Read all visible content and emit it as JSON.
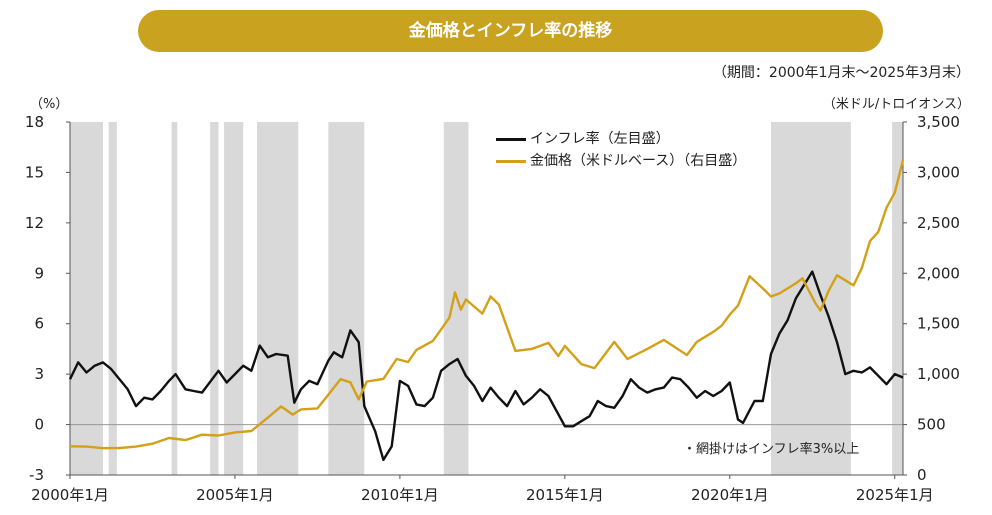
{
  "title": "金価格とインフレ率の推移",
  "period_note": "（期間：2000年1月末～2025年3月末）",
  "left_unit": "（%）",
  "right_unit": "（米ドル/トロイオンス）",
  "shading_note": "・網掛けはインフレ率3%以上",
  "colors": {
    "accent": "#c9a21f",
    "inflation": "#111111",
    "gold": "#d4a017",
    "shade": "#d9d9d9"
  },
  "chart_data": {
    "type": "line",
    "title": "金価格とインフレ率の推移",
    "x_tick_labels": [
      "2000年1月",
      "2005年1月",
      "2010年1月",
      "2015年1月",
      "2020年1月",
      "2025年1月"
    ],
    "x_tick_years": [
      2000,
      2005,
      2010,
      2015,
      2020,
      2025
    ],
    "x_range": [
      2000.0,
      2025.25
    ],
    "y_left": {
      "label": "（%）",
      "range": [
        -3,
        18
      ],
      "ticks": [
        -3,
        0,
        3,
        6,
        9,
        12,
        15,
        18
      ]
    },
    "y_right": {
      "label": "（米ドル/トロイオンス）",
      "range": [
        0,
        3500
      ],
      "ticks": [
        0,
        500,
        1000,
        1500,
        2000,
        2500,
        3000,
        3500
      ]
    },
    "grid": false,
    "legend_position": "top-center",
    "shaded_periods": [
      [
        2000.0,
        2001.0
      ],
      [
        2001.17,
        2001.42
      ],
      [
        2003.08,
        2003.25
      ],
      [
        2004.25,
        2004.5
      ],
      [
        2004.67,
        2005.25
      ],
      [
        2005.67,
        2006.92
      ],
      [
        2007.83,
        2008.92
      ],
      [
        2011.33,
        2012.08
      ],
      [
        2021.25,
        2023.67
      ],
      [
        2024.92,
        2025.25
      ]
    ],
    "series": [
      {
        "name": "インフレ率（左目盛）",
        "axis": "left",
        "color": "#111111",
        "points": [
          [
            2000.0,
            2.7
          ],
          [
            2000.25,
            3.7
          ],
          [
            2000.5,
            3.1
          ],
          [
            2000.75,
            3.5
          ],
          [
            2001.0,
            3.7
          ],
          [
            2001.25,
            3.3
          ],
          [
            2001.5,
            2.7
          ],
          [
            2001.75,
            2.1
          ],
          [
            2002.0,
            1.1
          ],
          [
            2002.25,
            1.6
          ],
          [
            2002.5,
            1.5
          ],
          [
            2002.75,
            2.0
          ],
          [
            2003.0,
            2.6
          ],
          [
            2003.2,
            3.0
          ],
          [
            2003.5,
            2.1
          ],
          [
            2003.75,
            2.0
          ],
          [
            2004.0,
            1.9
          ],
          [
            2004.5,
            3.2
          ],
          [
            2004.75,
            2.5
          ],
          [
            2005.0,
            3.0
          ],
          [
            2005.25,
            3.5
          ],
          [
            2005.5,
            3.2
          ],
          [
            2005.75,
            4.7
          ],
          [
            2006.0,
            4.0
          ],
          [
            2006.25,
            4.2
          ],
          [
            2006.6,
            4.1
          ],
          [
            2006.8,
            1.3
          ],
          [
            2007.0,
            2.1
          ],
          [
            2007.25,
            2.6
          ],
          [
            2007.5,
            2.4
          ],
          [
            2007.83,
            3.8
          ],
          [
            2008.0,
            4.3
          ],
          [
            2008.25,
            4.0
          ],
          [
            2008.5,
            5.6
          ],
          [
            2008.75,
            4.9
          ],
          [
            2008.92,
            1.1
          ],
          [
            2009.25,
            -0.4
          ],
          [
            2009.5,
            -2.1
          ],
          [
            2009.75,
            -1.3
          ],
          [
            2010.0,
            2.6
          ],
          [
            2010.25,
            2.3
          ],
          [
            2010.5,
            1.2
          ],
          [
            2010.75,
            1.1
          ],
          [
            2011.0,
            1.6
          ],
          [
            2011.25,
            3.2
          ],
          [
            2011.5,
            3.6
          ],
          [
            2011.75,
            3.9
          ],
          [
            2012.0,
            2.9
          ],
          [
            2012.25,
            2.3
          ],
          [
            2012.5,
            1.4
          ],
          [
            2012.75,
            2.2
          ],
          [
            2013.0,
            1.6
          ],
          [
            2013.25,
            1.1
          ],
          [
            2013.5,
            2.0
          ],
          [
            2013.75,
            1.2
          ],
          [
            2014.0,
            1.6
          ],
          [
            2014.25,
            2.1
          ],
          [
            2014.5,
            1.7
          ],
          [
            2014.75,
            0.8
          ],
          [
            2015.0,
            -0.1
          ],
          [
            2015.25,
            -0.1
          ],
          [
            2015.5,
            0.2
          ],
          [
            2015.75,
            0.5
          ],
          [
            2016.0,
            1.4
          ],
          [
            2016.25,
            1.1
          ],
          [
            2016.5,
            1.0
          ],
          [
            2016.75,
            1.7
          ],
          [
            2017.0,
            2.7
          ],
          [
            2017.25,
            2.2
          ],
          [
            2017.5,
            1.9
          ],
          [
            2017.75,
            2.1
          ],
          [
            2018.0,
            2.2
          ],
          [
            2018.25,
            2.8
          ],
          [
            2018.5,
            2.7
          ],
          [
            2018.75,
            2.2
          ],
          [
            2019.0,
            1.6
          ],
          [
            2019.25,
            2.0
          ],
          [
            2019.5,
            1.7
          ],
          [
            2019.75,
            2.0
          ],
          [
            2020.0,
            2.5
          ],
          [
            2020.25,
            0.3
          ],
          [
            2020.4,
            0.1
          ],
          [
            2020.75,
            1.4
          ],
          [
            2021.0,
            1.4
          ],
          [
            2021.25,
            4.2
          ],
          [
            2021.5,
            5.4
          ],
          [
            2021.75,
            6.2
          ],
          [
            2022.0,
            7.5
          ],
          [
            2022.5,
            9.1
          ],
          [
            2022.75,
            7.7
          ],
          [
            2023.0,
            6.4
          ],
          [
            2023.25,
            4.9
          ],
          [
            2023.5,
            3.0
          ],
          [
            2023.75,
            3.2
          ],
          [
            2024.0,
            3.1
          ],
          [
            2024.25,
            3.4
          ],
          [
            2024.5,
            2.9
          ],
          [
            2024.75,
            2.4
          ],
          [
            2025.0,
            3.0
          ],
          [
            2025.25,
            2.8
          ]
        ]
      },
      {
        "name": "金価格（米ドルベース）（右目盛）",
        "axis": "right",
        "color": "#d4a017",
        "points": [
          [
            2000.0,
            285
          ],
          [
            2000.5,
            282
          ],
          [
            2001.0,
            266
          ],
          [
            2001.5,
            268
          ],
          [
            2002.0,
            282
          ],
          [
            2002.5,
            310
          ],
          [
            2003.0,
            367
          ],
          [
            2003.5,
            346
          ],
          [
            2004.0,
            400
          ],
          [
            2004.5,
            392
          ],
          [
            2005.0,
            422
          ],
          [
            2005.5,
            436
          ],
          [
            2006.0,
            569
          ],
          [
            2006.4,
            680
          ],
          [
            2006.75,
            599
          ],
          [
            2007.0,
            650
          ],
          [
            2007.5,
            660
          ],
          [
            2007.83,
            795
          ],
          [
            2008.2,
            950
          ],
          [
            2008.5,
            918
          ],
          [
            2008.75,
            750
          ],
          [
            2009.0,
            927
          ],
          [
            2009.5,
            953
          ],
          [
            2009.9,
            1150
          ],
          [
            2010.25,
            1120
          ],
          [
            2010.5,
            1240
          ],
          [
            2011.0,
            1330
          ],
          [
            2011.5,
            1560
          ],
          [
            2011.67,
            1810
          ],
          [
            2011.85,
            1640
          ],
          [
            2012.0,
            1740
          ],
          [
            2012.5,
            1600
          ],
          [
            2012.75,
            1770
          ],
          [
            2013.0,
            1690
          ],
          [
            2013.5,
            1230
          ],
          [
            2014.0,
            1250
          ],
          [
            2014.5,
            1310
          ],
          [
            2014.8,
            1180
          ],
          [
            2015.0,
            1280
          ],
          [
            2015.5,
            1100
          ],
          [
            2015.9,
            1060
          ],
          [
            2016.5,
            1320
          ],
          [
            2016.9,
            1150
          ],
          [
            2017.5,
            1250
          ],
          [
            2018.0,
            1340
          ],
          [
            2018.7,
            1190
          ],
          [
            2019.0,
            1320
          ],
          [
            2019.5,
            1420
          ],
          [
            2019.75,
            1480
          ],
          [
            2020.0,
            1590
          ],
          [
            2020.25,
            1680
          ],
          [
            2020.6,
            1970
          ],
          [
            2021.0,
            1850
          ],
          [
            2021.25,
            1770
          ],
          [
            2021.5,
            1800
          ],
          [
            2022.0,
            1900
          ],
          [
            2022.2,
            1950
          ],
          [
            2022.6,
            1700
          ],
          [
            2022.75,
            1630
          ],
          [
            2023.0,
            1830
          ],
          [
            2023.25,
            1980
          ],
          [
            2023.5,
            1930
          ],
          [
            2023.75,
            1880
          ],
          [
            2024.0,
            2050
          ],
          [
            2024.25,
            2320
          ],
          [
            2024.5,
            2410
          ],
          [
            2024.75,
            2650
          ],
          [
            2025.0,
            2800
          ],
          [
            2025.25,
            3120
          ]
        ]
      }
    ]
  }
}
